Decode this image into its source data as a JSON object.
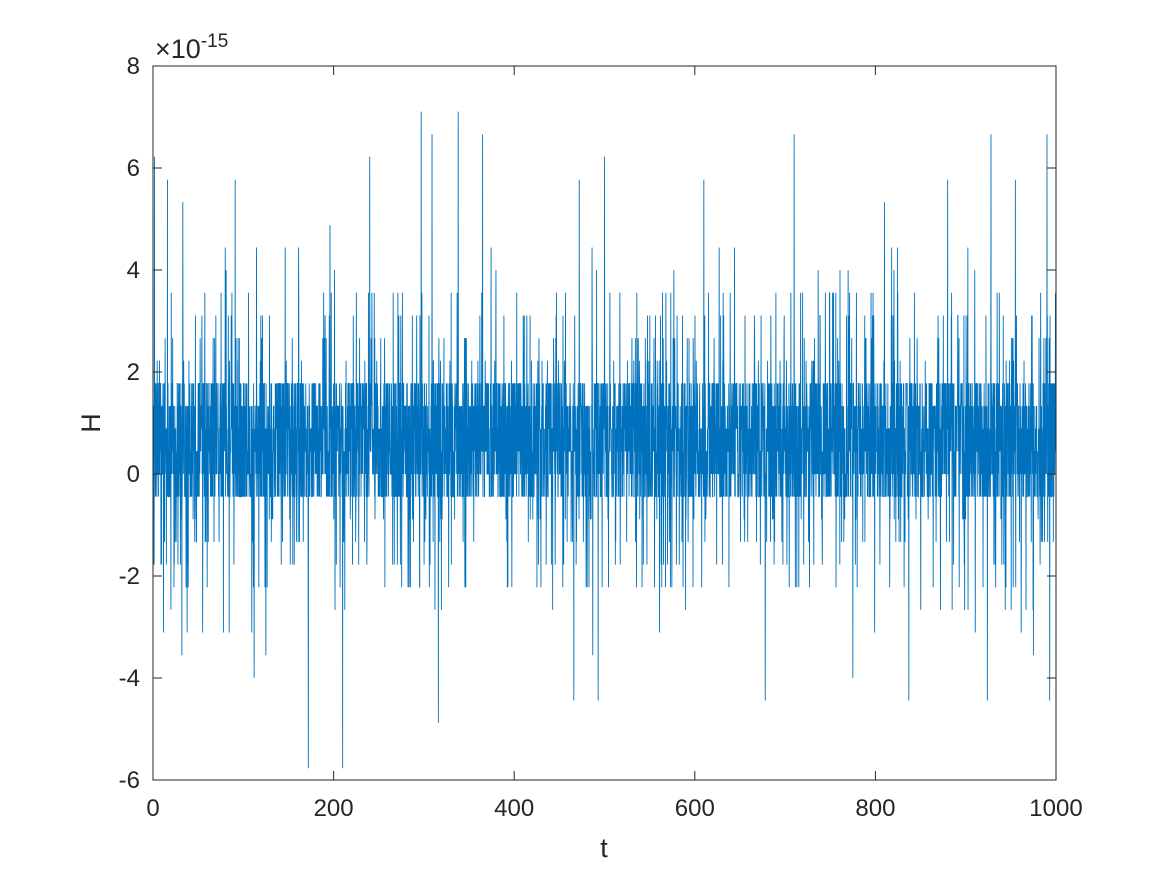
{
  "chart_data": {
    "type": "line",
    "title": "",
    "xlabel": "t",
    "ylabel": "H",
    "xlim": [
      0,
      1000
    ],
    "ylim": [
      -6e-15,
      8e-15
    ],
    "x_ticks": [
      0,
      200,
      400,
      600,
      800,
      1000
    ],
    "x_tick_labels": [
      "0",
      "200",
      "400",
      "600",
      "800",
      "1000"
    ],
    "y_ticks": [
      -6e-15,
      -4e-15,
      -2e-15,
      0,
      2e-15,
      4e-15,
      6e-15,
      8e-15
    ],
    "y_tick_labels": [
      "-6",
      "-4",
      "-2",
      "0",
      "2",
      "4",
      "6",
      "8"
    ],
    "y_exponent_base": "×10",
    "y_exponent_power": "-15",
    "grid": false,
    "legend": "none",
    "line_color": "#0072BD",
    "x_step": 0.2,
    "value_levels": [
      -5.77e-15,
      -4.88e-15,
      -4.44e-15,
      -3.997e-15,
      -3.553e-15,
      -3.109e-15,
      -2.665e-15,
      -2.22e-15,
      -1.776e-15,
      -1.332e-15,
      -8.88e-16,
      -4.44e-16,
      0,
      4.44e-16,
      8.88e-16,
      1.332e-15,
      1.776e-15,
      2.22e-15,
      2.665e-15,
      3.109e-15,
      3.553e-15,
      3.997e-15,
      4.44e-15,
      4.88e-15,
      5.33e-15,
      5.77e-15,
      6.22e-15,
      6.66e-15,
      7.105e-15
    ],
    "typical_range": [
      -4.44e-16,
      1.776e-15
    ],
    "extremes": [
      {
        "x": 1.5,
        "y": 6.22e-15
      },
      {
        "x": 16,
        "y": 5.77e-15
      },
      {
        "x": 32,
        "y": -3.553e-15
      },
      {
        "x": 33,
        "y": 5.33e-15
      },
      {
        "x": 78,
        "y": 6.22e-15
      },
      {
        "x": 78,
        "y": -3.109e-15
      },
      {
        "x": 91,
        "y": 5.77e-15
      },
      {
        "x": 112,
        "y": -3.997e-15
      },
      {
        "x": 125,
        "y": -3.553e-15
      },
      {
        "x": 172,
        "y": -5.77e-15
      },
      {
        "x": 196,
        "y": 4.88e-15
      },
      {
        "x": 210,
        "y": -5.77e-15
      },
      {
        "x": 240,
        "y": 6.22e-15
      },
      {
        "x": 297,
        "y": 7.105e-15
      },
      {
        "x": 309,
        "y": 6.66e-15
      },
      {
        "x": 316,
        "y": -4.88e-15
      },
      {
        "x": 338,
        "y": 7.105e-15
      },
      {
        "x": 365,
        "y": 6.66e-15
      },
      {
        "x": 466,
        "y": -4.44e-15
      },
      {
        "x": 472,
        "y": 5.77e-15
      },
      {
        "x": 487,
        "y": -3.553e-15
      },
      {
        "x": 493,
        "y": -4.44e-15
      },
      {
        "x": 500,
        "y": 6.22e-15
      },
      {
        "x": 561,
        "y": -3.109e-15
      },
      {
        "x": 610,
        "y": 5.77e-15
      },
      {
        "x": 678,
        "y": -4.44e-15
      },
      {
        "x": 710,
        "y": 6.66e-15
      },
      {
        "x": 775,
        "y": -3.997e-15
      },
      {
        "x": 810,
        "y": 5.33e-15
      },
      {
        "x": 837,
        "y": -4.44e-15
      },
      {
        "x": 880,
        "y": 5.77e-15
      },
      {
        "x": 924,
        "y": -4.44e-15
      },
      {
        "x": 928,
        "y": 6.66e-15
      },
      {
        "x": 955,
        "y": 5.77e-15
      },
      {
        "x": 975,
        "y": -3.553e-15
      },
      {
        "x": 990,
        "y": 6.66e-15
      },
      {
        "x": 993,
        "y": -4.44e-15
      }
    ]
  }
}
